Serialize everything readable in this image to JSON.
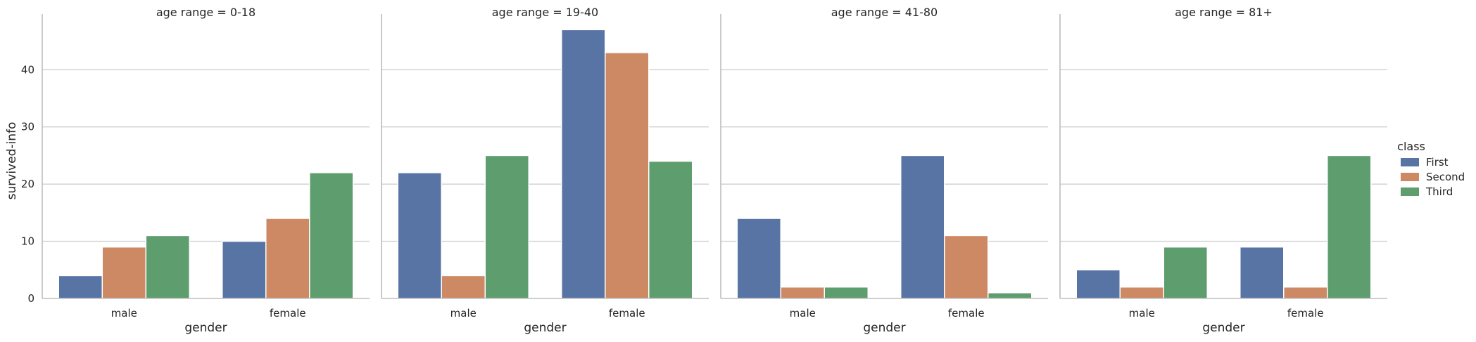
{
  "chart_data": {
    "type": "bar",
    "ylabel": "survived-info",
    "xlabel": "gender",
    "ylim": [
      0,
      49
    ],
    "yticks": [
      0,
      10,
      20,
      30,
      40
    ],
    "grid": "horizontal",
    "categories": [
      "male",
      "female"
    ],
    "legend": {
      "title": "class",
      "placement": "right",
      "entries": [
        "First",
        "Second",
        "Third"
      ]
    },
    "colors": {
      "First": "#5874a5",
      "Second": "#cd8963",
      "Third": "#5e9e6e",
      "grid": "#cfcfcf",
      "axis": "#bdbdbd",
      "text": "#262626"
    },
    "panels": [
      {
        "title": "age range = 0-18",
        "series": [
          {
            "name": "First",
            "values": [
              4,
              10
            ]
          },
          {
            "name": "Second",
            "values": [
              9,
              14
            ]
          },
          {
            "name": "Third",
            "values": [
              11,
              22
            ]
          }
        ]
      },
      {
        "title": "age range = 19-40",
        "series": [
          {
            "name": "First",
            "values": [
              22,
              47
            ]
          },
          {
            "name": "Second",
            "values": [
              4,
              43
            ]
          },
          {
            "name": "Third",
            "values": [
              25,
              24
            ]
          }
        ]
      },
      {
        "title": "age range = 41-80",
        "series": [
          {
            "name": "First",
            "values": [
              14,
              25
            ]
          },
          {
            "name": "Second",
            "values": [
              2,
              11
            ]
          },
          {
            "name": "Third",
            "values": [
              2,
              1
            ]
          }
        ]
      },
      {
        "title": "age range = 81+",
        "series": [
          {
            "name": "First",
            "values": [
              5,
              9
            ]
          },
          {
            "name": "Second",
            "values": [
              2,
              2
            ]
          },
          {
            "name": "Third",
            "values": [
              9,
              25
            ]
          }
        ]
      }
    ]
  }
}
